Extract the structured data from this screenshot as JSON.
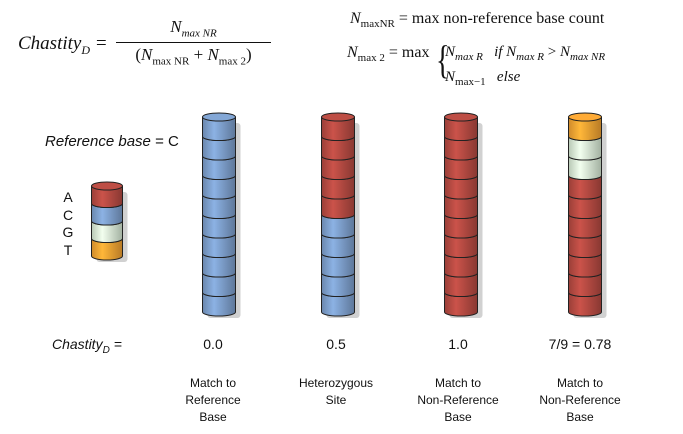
{
  "formula": {
    "lhs_name": "Chastity",
    "lhs_sub": "D",
    "num_N": "N",
    "num_sub": "max NR",
    "den_open": "(",
    "den_N1": "N",
    "den_sub1": "max NR",
    "den_plus": " + ",
    "den_N2": "N",
    "den_sub2": "max 2",
    "den_close": ")",
    "def1_N": "N",
    "def1_sub": "maxNR",
    "def1_text": " = max non-reference base count",
    "def2_N": "N",
    "def2_sub": "max 2",
    "def2_eq": " = max",
    "case1_N": "N",
    "case1_sub": "max R",
    "case1_if": "if",
    "case1_N2": "N",
    "case1_sub2": "max R",
    "case1_gt": " > ",
    "case1_N3": "N",
    "case1_sub3": "max NR",
    "case2_N": "N",
    "case2_sub": "max−1",
    "case2_else": "else"
  },
  "reference": {
    "label_italic": "Reference base",
    "label_rest": " = C"
  },
  "legend": {
    "letters": [
      "A",
      "C",
      "G",
      "T"
    ],
    "colors": [
      "#b54a42",
      "#7d9fcc",
      "#d8ebd5",
      "#f4a333"
    ]
  },
  "colors": {
    "A": "#b54a42",
    "C": "#7d9fcc",
    "G": "#d8ebd5",
    "T": "#f4a333"
  },
  "chastity_label": {
    "name": "Chastity",
    "sub": "D",
    "eq": " ="
  },
  "columns": [
    {
      "bases": [
        "C",
        "C",
        "C",
        "C",
        "C",
        "C",
        "C",
        "C",
        "C",
        "C"
      ],
      "value": "0.0",
      "caption": [
        "Match to",
        "Reference",
        "Base"
      ]
    },
    {
      "bases": [
        "A",
        "A",
        "A",
        "A",
        "A",
        "C",
        "C",
        "C",
        "C",
        "C"
      ],
      "value": "0.5",
      "caption": [
        "Heterozygous",
        "Site"
      ]
    },
    {
      "bases": [
        "A",
        "A",
        "A",
        "A",
        "A",
        "A",
        "A",
        "A",
        "A",
        "A"
      ],
      "value": "1.0",
      "caption": [
        "Match to",
        "Non-Reference",
        "Base"
      ]
    },
    {
      "bases": [
        "T",
        "G",
        "G",
        "A",
        "A",
        "A",
        "A",
        "A",
        "A",
        "A"
      ],
      "value": "7/9 = 0.78",
      "caption": [
        "Match to",
        "Non-Reference",
        "Base"
      ]
    }
  ]
}
